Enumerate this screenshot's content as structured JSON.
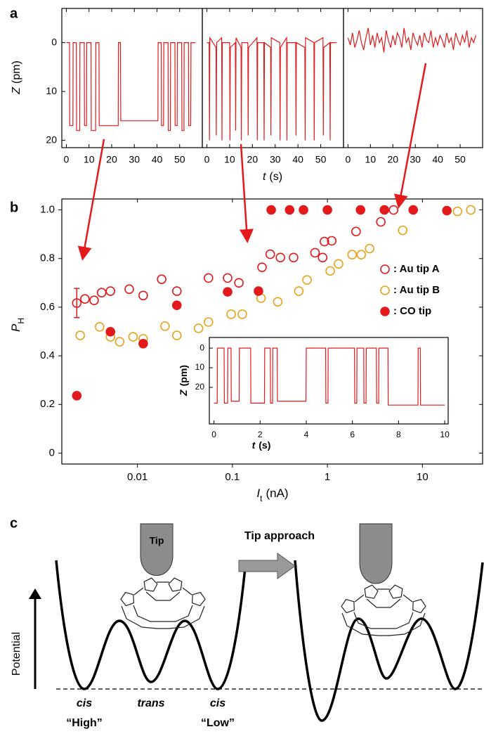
{
  "panel_labels": [
    "a",
    "b",
    "c"
  ],
  "chart_data": [
    {
      "type": "line",
      "xlim": [
        -2,
        60
      ],
      "ylim": [
        -7,
        21.5
      ],
      "y_inverted": true,
      "xticks": [
        0,
        10,
        20,
        30,
        40,
        50
      ],
      "yticks": [
        0,
        10,
        20
      ],
      "ylabel": {
        "symbol": "Z",
        "unit": "(pm)"
      },
      "color": "#e31a1c",
      "x": [
        0,
        1.4,
        1.5,
        2.9,
        3,
        4.4,
        4.5,
        5.9,
        6,
        7.9,
        8,
        8.9,
        9,
        10.9,
        11,
        12.9,
        13,
        14.4,
        14.5,
        22.9,
        23,
        23.9,
        24,
        40.4,
        40.5,
        41.9,
        42,
        42.9,
        43,
        44.9,
        45,
        45.9,
        46,
        47.9,
        48,
        48.9,
        49,
        50.9,
        51,
        51.9,
        52,
        53.9,
        54,
        54.9,
        55,
        57
      ],
      "values": [
        0,
        0,
        17,
        17,
        0,
        0,
        18,
        18,
        0,
        0,
        17,
        17,
        0,
        0,
        18,
        18,
        0,
        0,
        17,
        17,
        0,
        0,
        16,
        16,
        0,
        0,
        17,
        17,
        0,
        0,
        18,
        18,
        0,
        0,
        17,
        17,
        0,
        0,
        18,
        18,
        0,
        0,
        17,
        17,
        0,
        0
      ]
    },
    {
      "type": "line",
      "xlim": [
        -2,
        60
      ],
      "ylim": [
        -7,
        21.5
      ],
      "y_inverted": true,
      "xticks": [
        0,
        10,
        20,
        30,
        40,
        50
      ],
      "xlabel": {
        "symbol": "t",
        "unit": "(s)"
      },
      "color": "#e31a1c",
      "x": [
        0,
        1,
        1.15,
        1.3,
        4,
        4.15,
        4.3,
        6.5,
        6.65,
        6.8,
        10,
        10.15,
        10.3,
        12.5,
        12.65,
        12.8,
        15,
        15.15,
        15.3,
        18,
        18.15,
        18.3,
        22,
        22.15,
        22.3,
        25,
        25.15,
        25.3,
        28,
        28.15,
        28.3,
        32,
        32.15,
        32.3,
        35,
        35.15,
        35.3,
        39,
        39.15,
        39.3,
        43,
        43.15,
        43.3,
        47,
        47.15,
        47.3,
        51,
        51.15,
        51.3,
        54,
        54.15,
        54.3,
        57
      ],
      "values": [
        0,
        0,
        20,
        -1,
        1,
        19,
        0,
        -1,
        20,
        0,
        0,
        20,
        1,
        0,
        18,
        -1,
        1,
        20,
        0,
        0,
        19,
        1,
        -1,
        20,
        0,
        0,
        20,
        0,
        1,
        19,
        -1,
        0,
        20,
        1,
        -1,
        20,
        0,
        0,
        19,
        0,
        1,
        20,
        -1,
        0,
        20,
        0,
        -1,
        19,
        1,
        0,
        20,
        0,
        0
      ]
    },
    {
      "type": "line",
      "xlim": [
        -2,
        60
      ],
      "ylim": [
        -7,
        21.5
      ],
      "y_inverted": true,
      "xticks": [
        0,
        10,
        20,
        30,
        40,
        50
      ],
      "color": "#e31a1c",
      "x": [
        0,
        1,
        2,
        3,
        4,
        5,
        6,
        7,
        8,
        9,
        10,
        11,
        12,
        13,
        14,
        15,
        16,
        17,
        18,
        19,
        20,
        21,
        22,
        23,
        24,
        25,
        26,
        27,
        28,
        29,
        30,
        31,
        32,
        33,
        34,
        35,
        36,
        37,
        38,
        39,
        40,
        41,
        42,
        43,
        44,
        45,
        46,
        47,
        48,
        49,
        50,
        51,
        52,
        53,
        54,
        55,
        56,
        57
      ],
      "values": [
        -1,
        0.5,
        -2,
        1,
        -0.5,
        -2.5,
        0,
        1.5,
        -1,
        -3,
        0.5,
        -1.5,
        1,
        -2,
        0,
        -1,
        2,
        -2.5,
        -0.5,
        1,
        -1.5,
        0.5,
        -2,
        -1,
        1,
        -3,
        0,
        -1,
        1.5,
        -2,
        -0.5,
        0.5,
        -1.5,
        1,
        -2,
        -0.5,
        0,
        -2.5,
        1,
        -1,
        0.5,
        -1.5,
        -0.5,
        1,
        -2,
        0,
        -1,
        1.5,
        -2,
        -0.5,
        0.5,
        -1.5,
        0,
        -2.5,
        1,
        -1,
        0,
        -1.5
      ]
    },
    {
      "type": "scatter",
      "log_x": true,
      "xlim": [
        0.0016,
        43
      ],
      "ylim": [
        -0.045,
        1.045
      ],
      "xticks": [
        0.01,
        0.1,
        1,
        10
      ],
      "yticks": [
        0,
        0.2,
        0.4,
        0.6,
        0.8,
        {
          "value": 1,
          "label": "1.0"
        }
      ],
      "xlabel": {
        "symbol": "I",
        "sub": "t",
        "unit": "(nA)"
      },
      "ylabel": {
        "symbol": "P",
        "sub": "H"
      },
      "legend": true,
      "series": [
        {
          "name": ": Au tip A",
          "color": "#e31a1c",
          "marker": "open",
          "x": [
            0.0023,
            0.0028,
            0.0035,
            0.0042,
            0.0052,
            0.0082,
            0.0115,
            0.018,
            0.026,
            0.056,
            0.089,
            0.117,
            0.205,
            0.25,
            0.32,
            0.44,
            0.74,
            0.89,
            0.93,
            1.11,
            2.0,
            3.65,
            4.97
          ],
          "values": [
            0.617,
            0.634,
            0.628,
            0.66,
            0.666,
            0.674,
            0.648,
            0.715,
            0.666,
            0.72,
            0.72,
            0.7,
            0.764,
            0.818,
            0.804,
            0.804,
            0.824,
            0.804,
            0.87,
            0.873,
            0.911,
            0.951,
            1.0
          ],
          "errors": [
            0.06,
            null,
            null,
            null,
            null,
            null,
            null,
            null,
            null,
            null,
            null,
            null,
            null,
            null,
            null,
            null,
            null,
            null,
            null,
            null,
            null,
            null,
            null
          ]
        },
        {
          "name": ": Au tip B",
          "color": "#e9a21c",
          "marker": "open",
          "x": [
            0.0025,
            0.004,
            0.0052,
            0.0065,
            0.009,
            0.0115,
            0.0195,
            0.026,
            0.044,
            0.056,
            0.097,
            0.127,
            0.2,
            0.3,
            0.5,
            0.61,
            1.07,
            1.31,
            1.82,
            2.27,
            2.78,
            6.2,
            23.4,
            32.3
          ],
          "values": [
            0.484,
            0.519,
            0.478,
            0.458,
            0.478,
            0.47,
            0.522,
            0.484,
            0.513,
            0.539,
            0.571,
            0.571,
            0.637,
            0.622,
            0.666,
            0.712,
            0.749,
            0.778,
            0.816,
            0.816,
            0.841,
            0.916,
            0.994,
            1.0
          ]
        },
        {
          "name": ": CO tip",
          "color": "#e31a1c",
          "marker": "filled",
          "x": [
            0.0023,
            0.0052,
            0.0115,
            0.026,
            0.089,
            0.188,
            0.256,
            0.4,
            0.56,
            1.0,
            2.23,
            3.98,
            8.0,
            18.1
          ],
          "values": [
            0.236,
            0.499,
            0.45,
            0.608,
            0.663,
            0.666,
            1.0,
            1.0,
            1.0,
            1.0,
            1.0,
            1.0,
            1.0,
            0.997
          ]
        }
      ]
    },
    {
      "type": "line",
      "xlim": [
        -0.2,
        10.15
      ],
      "ylim": [
        -5.4,
        38.6
      ],
      "y_inverted": true,
      "xticks": [
        0,
        2,
        4,
        6,
        8,
        10
      ],
      "yticks": [
        0,
        10,
        20
      ],
      "xlabel": {
        "symbol": "t",
        "unit": "(s)"
      },
      "ylabel": {
        "symbol": "Z",
        "unit": "(pm)"
      },
      "color": "#e31a1c",
      "x": [
        0,
        0.14,
        0.15,
        0.44,
        0.45,
        0.59,
        0.6,
        0.74,
        0.75,
        1.09,
        1.1,
        1.59,
        1.6,
        2.19,
        2.2,
        2.44,
        2.45,
        2.54,
        2.55,
        2.74,
        2.75,
        3.99,
        4,
        4.84,
        4.85,
        4.94,
        4.95,
        6.09,
        6.1,
        6.19,
        6.2,
        6.49,
        6.5,
        6.59,
        6.6,
        7.04,
        7.05,
        7.14,
        7.15,
        7.54,
        7.55,
        8.84,
        8.85,
        8.94,
        8.95,
        10
      ],
      "values": [
        28,
        28,
        0,
        0,
        28,
        28,
        0,
        0,
        27,
        27,
        0,
        0,
        28,
        28,
        0,
        0,
        28,
        28,
        0,
        0,
        27,
        27,
        0,
        0,
        28,
        28,
        0,
        0,
        28,
        28,
        0,
        0,
        28,
        28,
        0,
        0,
        28,
        28,
        0,
        0,
        29,
        29,
        0,
        0,
        29,
        29
      ]
    }
  ],
  "diagram": {
    "tip": "Tip",
    "approach": "Tip approach",
    "y_label": "Potential",
    "states": [
      "cis",
      "trans",
      "cis"
    ],
    "state_labels": [
      "“High”",
      "“Low”"
    ]
  }
}
